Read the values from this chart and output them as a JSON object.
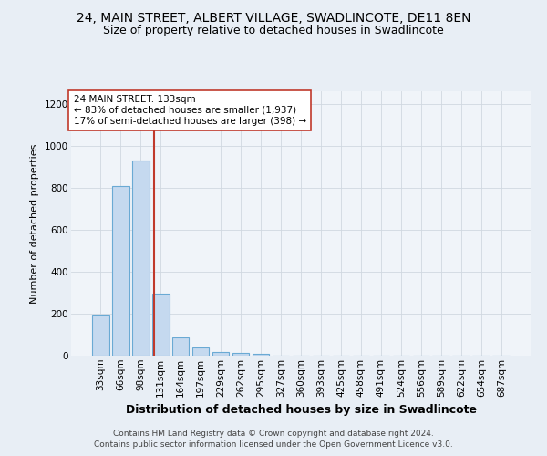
{
  "title": "24, MAIN STREET, ALBERT VILLAGE, SWADLINCOTE, DE11 8EN",
  "subtitle": "Size of property relative to detached houses in Swadlincote",
  "xlabel": "Distribution of detached houses by size in Swadlincote",
  "ylabel": "Number of detached properties",
  "footer_line1": "Contains HM Land Registry data © Crown copyright and database right 2024.",
  "footer_line2": "Contains public sector information licensed under the Open Government Licence v3.0.",
  "bar_labels": [
    "33sqm",
    "66sqm",
    "98sqm",
    "131sqm",
    "164sqm",
    "197sqm",
    "229sqm",
    "262sqm",
    "295sqm",
    "327sqm",
    "360sqm",
    "393sqm",
    "425sqm",
    "458sqm",
    "491sqm",
    "524sqm",
    "556sqm",
    "589sqm",
    "622sqm",
    "654sqm",
    "687sqm"
  ],
  "bar_values": [
    197,
    810,
    930,
    295,
    88,
    40,
    18,
    12,
    8,
    0,
    0,
    0,
    0,
    0,
    0,
    0,
    0,
    0,
    0,
    0,
    0
  ],
  "bar_color": "#c5d9ef",
  "bar_edgecolor": "#6aaad4",
  "bar_linewidth": 0.8,
  "vline_color": "#c0392b",
  "vline_linewidth": 1.5,
  "vline_position": 2.67,
  "annotation_text": "24 MAIN STREET: 133sqm\n← 83% of detached houses are smaller (1,937)\n17% of semi-detached houses are larger (398) →",
  "annotation_box_color": "white",
  "annotation_box_edgecolor": "#c0392b",
  "annotation_fontsize": 7.5,
  "ylim": [
    0,
    1260
  ],
  "yticks": [
    0,
    200,
    400,
    600,
    800,
    1000,
    1200
  ],
  "title_fontsize": 10,
  "subtitle_fontsize": 9,
  "xlabel_fontsize": 9,
  "ylabel_fontsize": 8,
  "tick_fontsize": 7.5,
  "footer_fontsize": 6.5,
  "bg_color": "#e8eef5",
  "plot_bg_color": "#f0f4f9",
  "grid_color": "#d0d8e0"
}
